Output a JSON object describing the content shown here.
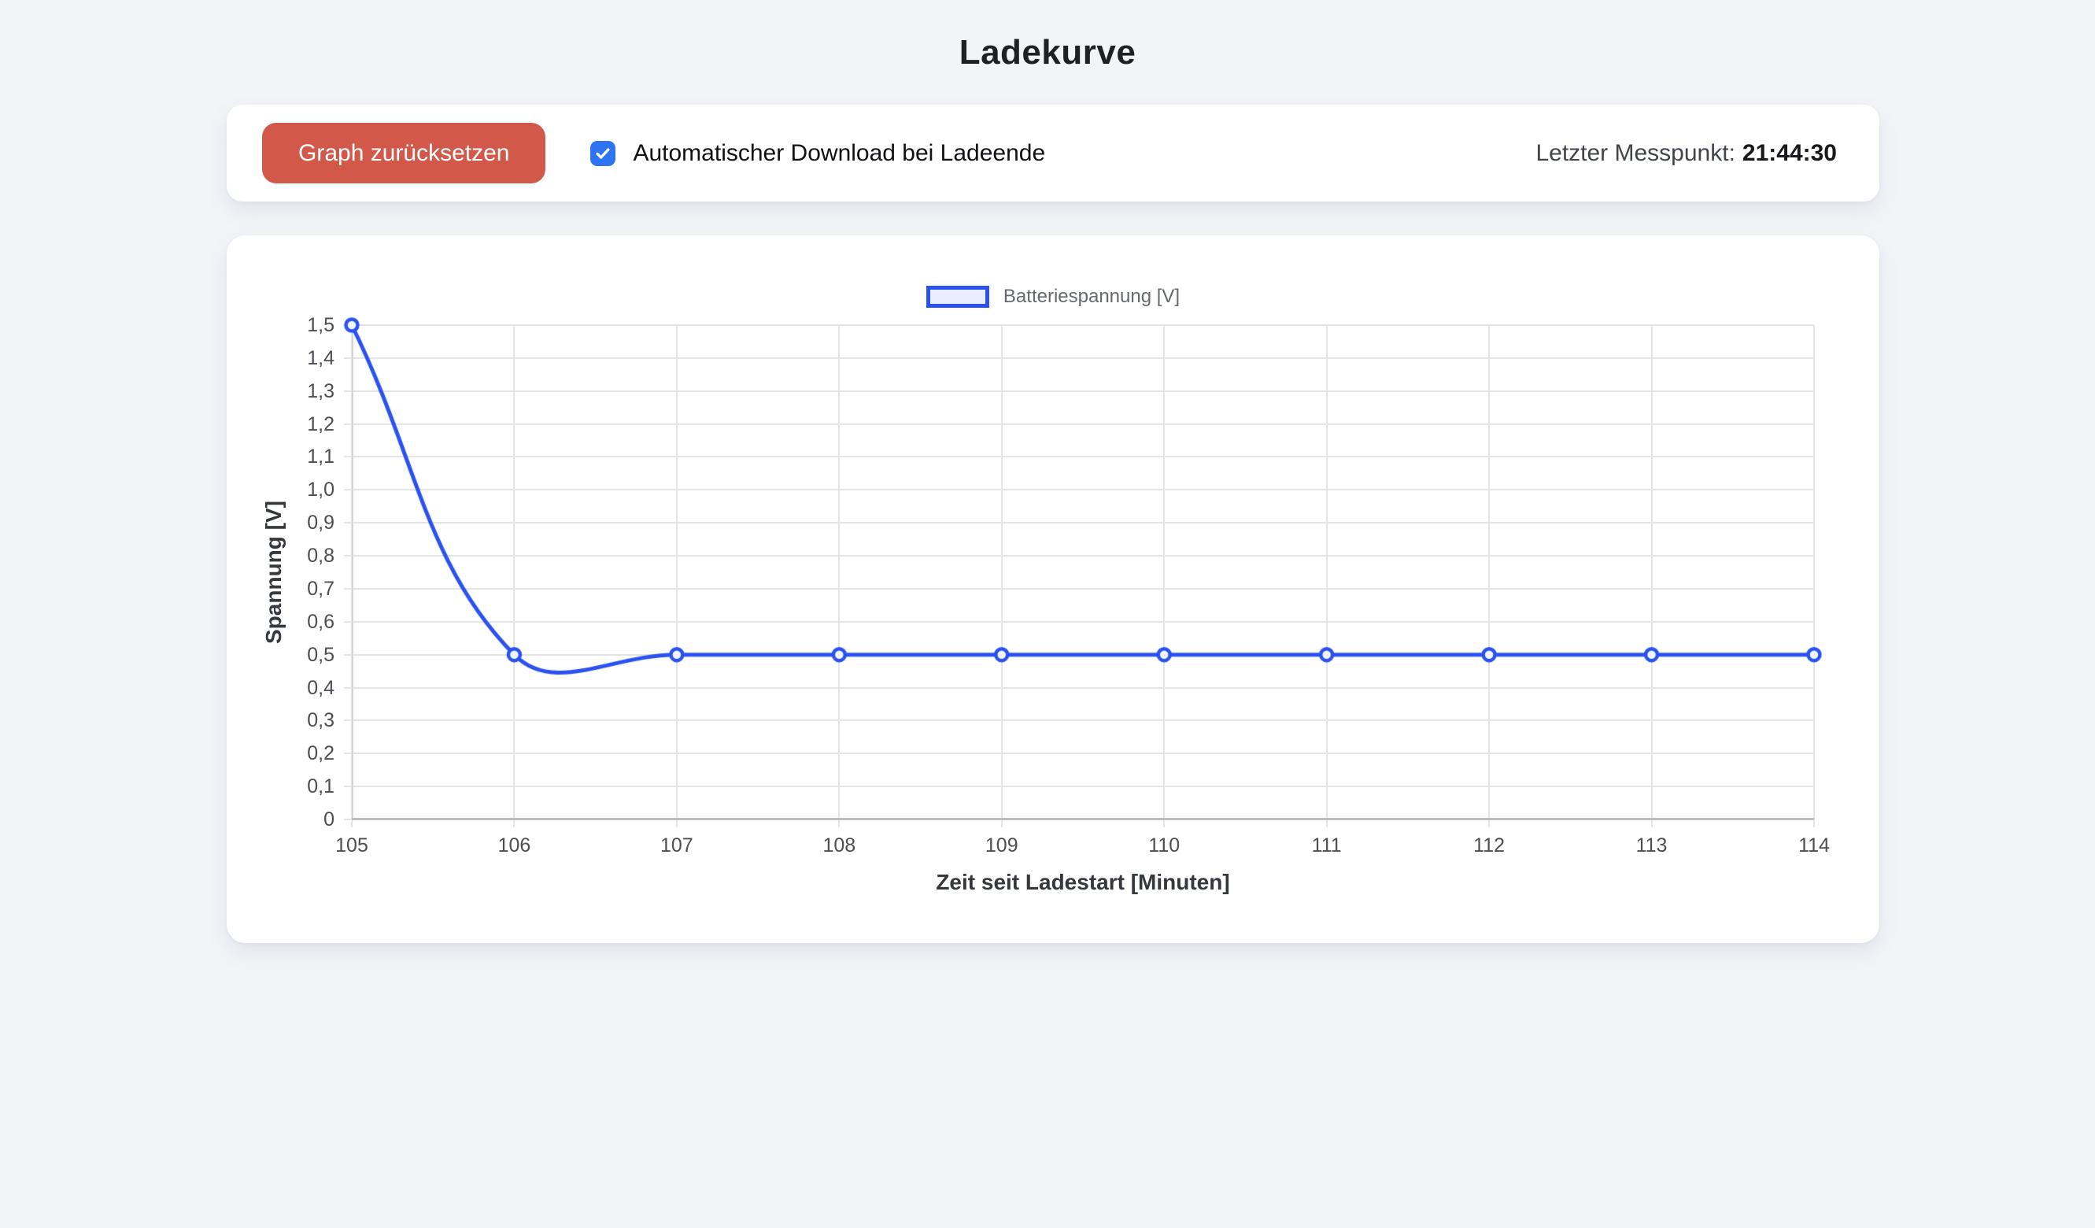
{
  "page": {
    "title": "Ladekurve",
    "background": "#f2f4f8"
  },
  "toolbar": {
    "reset_button": "Graph zurücksetzen",
    "checkbox": {
      "checked": true,
      "label": "Automatischer Download bei Ladeende"
    },
    "status_label": "Letzter Messpunkt:",
    "status_time": "21:44:30"
  },
  "colors": {
    "button": "#d2594a",
    "checkbox_accent": "#2e73f2",
    "line_blue": "#2b52ee"
  },
  "chart_data": {
    "type": "line",
    "title": "",
    "legend_label": "Batteriespannung [V]",
    "legend_position": "top",
    "xlabel": "Zeit seit Ladestart [Minuten]",
    "ylabel": "Spannung [V]",
    "x": [
      105,
      106,
      107,
      108,
      109,
      110,
      111,
      112,
      113,
      114
    ],
    "series": [
      {
        "name": "Batteriespannung [V]",
        "values": [
          1.5,
          0.5,
          0.5,
          0.5,
          0.5,
          0.5,
          0.5,
          0.5,
          0.5,
          0.5
        ]
      }
    ],
    "xlim": [
      105,
      114
    ],
    "ylim": [
      0,
      1.5
    ],
    "x_ticks": [
      "105",
      "106",
      "107",
      "108",
      "109",
      "110",
      "111",
      "112",
      "113",
      "114"
    ],
    "y_ticks": [
      "0",
      "0,1",
      "0,2",
      "0,3",
      "0,4",
      "0,5",
      "0,6",
      "0,7",
      "0,8",
      "0,9",
      "1,0",
      "1,1",
      "1,2",
      "1,3",
      "1,4",
      "1,5"
    ],
    "grid": true,
    "line_color": "#2b52ee",
    "fill_color": "#e8ecfc",
    "point_fill": "#f3f5fe",
    "point_radius": 7.5,
    "line_width": 5,
    "tension": 0.4
  }
}
